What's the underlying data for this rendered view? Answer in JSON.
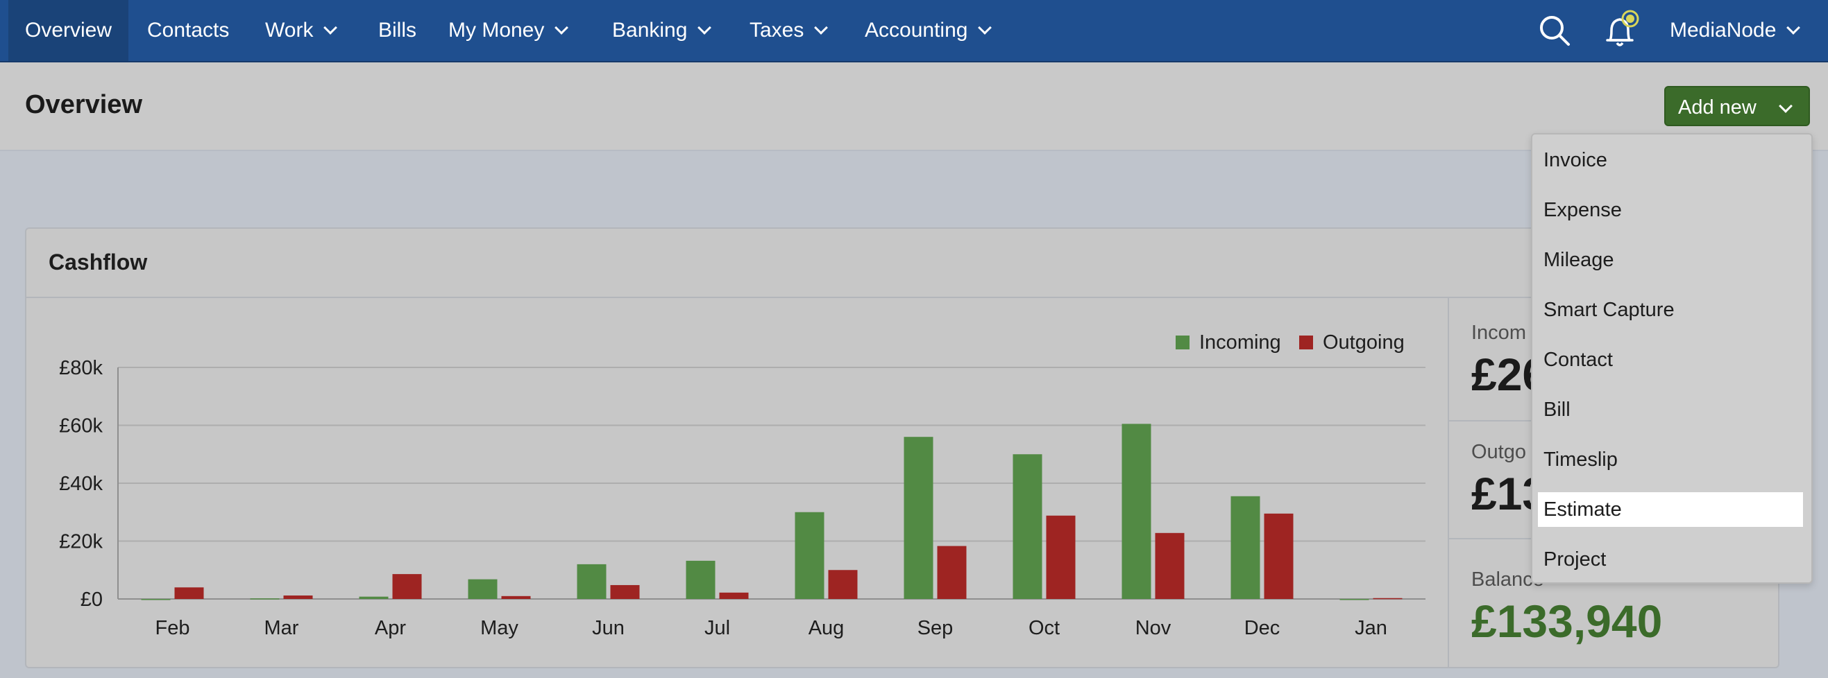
{
  "nav": {
    "items": [
      {
        "label": "Overview",
        "active": true,
        "dropdown": false
      },
      {
        "label": "Contacts",
        "active": false,
        "dropdown": false
      },
      {
        "label": "Work",
        "active": false,
        "dropdown": true
      },
      {
        "label": "Bills",
        "active": false,
        "dropdown": false
      },
      {
        "label": "My Money",
        "active": false,
        "dropdown": true
      },
      {
        "label": "Banking",
        "active": false,
        "dropdown": true
      },
      {
        "label": "Taxes",
        "active": false,
        "dropdown": true
      },
      {
        "label": "Accounting",
        "active": false,
        "dropdown": true
      }
    ],
    "icons": {
      "search": "search-icon",
      "notifications": "bell-icon"
    },
    "user_label": "MediaNode"
  },
  "page": {
    "title": "Overview",
    "add_new_label": "Add new"
  },
  "add_menu": {
    "items": [
      "Invoice",
      "Expense",
      "Mileage",
      "Smart Capture",
      "Contact",
      "Bill",
      "Timeslip",
      "Estimate",
      "Project"
    ],
    "highlighted_index": 7
  },
  "cashflow": {
    "title": "Cashflow",
    "summary": {
      "incoming_label": "Incom",
      "incoming_value": "£26",
      "outgoing_label": "Outgo",
      "outgoing_value": "£13",
      "balance_label": "Balance",
      "balance_value": "£133,940"
    }
  },
  "colors": {
    "incoming": "#528a44",
    "outgoing": "#9e2422",
    "nav": "#1f4f8f",
    "button": "#3b6b2a"
  },
  "chart_data": {
    "type": "bar",
    "categories": [
      "Feb",
      "Mar",
      "Apr",
      "May",
      "Jun",
      "Jul",
      "Aug",
      "Sep",
      "Oct",
      "Nov",
      "Dec",
      "Jan"
    ],
    "series": [
      {
        "name": "Incoming",
        "values": [
          0,
          200,
          800,
          6800,
          12000,
          13200,
          30000,
          56000,
          50000,
          60500,
          35500,
          0
        ]
      },
      {
        "name": "Outgoing",
        "values": [
          4000,
          1200,
          8600,
          1000,
          4800,
          2200,
          10000,
          18300,
          28800,
          22800,
          29500,
          300
        ]
      }
    ],
    "y_ticks": [
      "£0",
      "£20k",
      "£40k",
      "£60k",
      "£80k"
    ],
    "ylim": [
      0,
      80000
    ],
    "legend": "top-right",
    "grid": true
  }
}
